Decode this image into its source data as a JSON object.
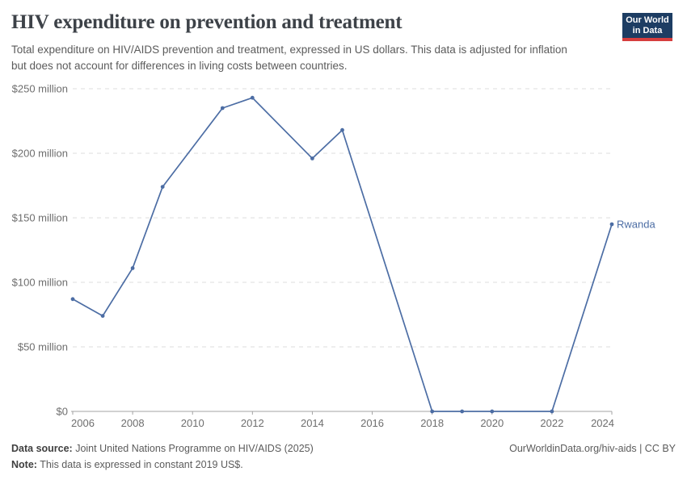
{
  "header": {
    "title": "HIV expenditure on prevention and treatment",
    "subtitle": "Total expenditure on HIV/AIDS prevention and treatment, expressed in US dollars. This data is adjusted for inflation but does not account for differences in living costs between countries."
  },
  "logo": {
    "line1": "Our World",
    "line2": "in Data",
    "bg_color": "#1d3d63",
    "accent_color": "#d63e3e"
  },
  "chart_data": {
    "type": "line",
    "title": "HIV expenditure on prevention and treatment",
    "entity_label": "Rwanda",
    "unit": "US dollars (constant 2019 US$)",
    "line_color": "#4c6da4",
    "gridline_color": "#dcdcdc",
    "axis_color": "#a3a3a3",
    "tick_label_color": "#6e6e6e",
    "xlim": [
      2006,
      2024
    ],
    "ylim": [
      0,
      250
    ],
    "grid": true,
    "legend_position": "end-of-line",
    "xticks": [
      2006,
      2008,
      2010,
      2012,
      2014,
      2016,
      2018,
      2020,
      2022,
      2024
    ],
    "yticks": [
      {
        "value": 0,
        "label": "$0"
      },
      {
        "value": 50,
        "label": "$50 million"
      },
      {
        "value": 100,
        "label": "$100 million"
      },
      {
        "value": 150,
        "label": "$150 million"
      },
      {
        "value": 200,
        "label": "$200 million"
      },
      {
        "value": 250,
        "label": "$250 million"
      }
    ],
    "series": [
      {
        "name": "Rwanda",
        "points": [
          {
            "year": 2006,
            "value_million_usd": 87
          },
          {
            "year": 2007,
            "value_million_usd": 74
          },
          {
            "year": 2008,
            "value_million_usd": 111
          },
          {
            "year": 2009,
            "value_million_usd": 174
          },
          {
            "year": 2011,
            "value_million_usd": 235
          },
          {
            "year": 2012,
            "value_million_usd": 243
          },
          {
            "year": 2014,
            "value_million_usd": 196
          },
          {
            "year": 2015,
            "value_million_usd": 218
          },
          {
            "year": 2018,
            "value_million_usd": 0
          },
          {
            "year": 2019,
            "value_million_usd": 0
          },
          {
            "year": 2020,
            "value_million_usd": 0
          },
          {
            "year": 2022,
            "value_million_usd": 0
          },
          {
            "year": 2024,
            "value_million_usd": 145
          }
        ]
      }
    ]
  },
  "footer": {
    "source_label": "Data source:",
    "source_text": " Joint United Nations Programme on HIV/AIDS (2025)",
    "note_label": "Note:",
    "note_text": " This data is expressed in constant 2019 US$.",
    "right_text": "OurWorldinData.org/hiv-aids | CC BY"
  }
}
